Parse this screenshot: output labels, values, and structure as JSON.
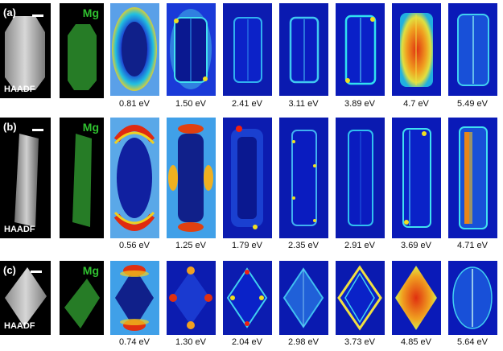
{
  "rows": [
    {
      "label": "(a)",
      "haadf_label": "HAADF",
      "mg_label": "Mg",
      "energies": [
        "0.81 eV",
        "1.50 eV",
        "2.41 eV",
        "3.11 eV",
        "3.89 eV",
        "4.7 eV",
        "5.49 eV"
      ]
    },
    {
      "label": "(b)",
      "haadf_label": "HAADF",
      "mg_label": "Mg",
      "energies": [
        "0.56 eV",
        "1.25 eV",
        "1.79 eV",
        "2.35 eV",
        "2.91 eV",
        "3.69 eV",
        "4.71 eV"
      ]
    },
    {
      "label": "(c)",
      "haadf_label": "HAADF",
      "mg_label": "Mg",
      "energies": [
        "0.74 eV",
        "1.30 eV",
        "2.04 eV",
        "2.98 eV",
        "3.73 eV",
        "4.85 eV",
        "5.64 eV"
      ]
    }
  ],
  "colors": {
    "map_background": "#0a1fb8",
    "mg_green": "#2fc02f"
  }
}
